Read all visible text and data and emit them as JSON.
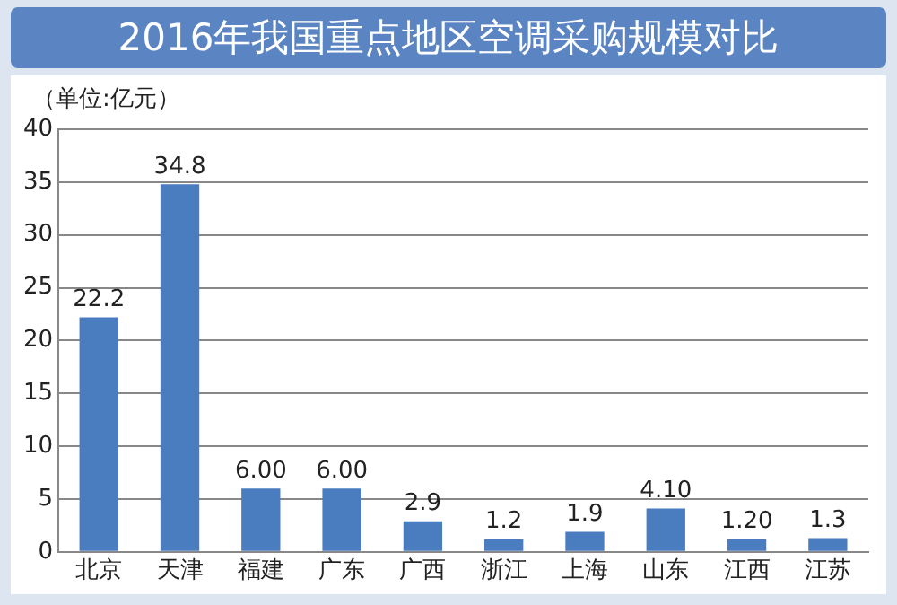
{
  "chart_data": {
    "type": "bar",
    "title": "2016年我国重点地区空调采购规模对比",
    "annotations": [
      "（单位:亿元）"
    ],
    "categories": [
      "北京",
      "天津",
      "福建",
      "广东",
      "广西",
      "浙江",
      "上海",
      "山东",
      "江西",
      "江苏"
    ],
    "values": [
      22.2,
      34.8,
      6,
      6,
      2.9,
      1.2,
      1.9,
      4.1,
      1.2,
      1.3
    ],
    "value_labels": [
      "22.2",
      "34.8",
      "6.00",
      "6.00",
      "2.9",
      "1.2",
      "1.9",
      "4.10",
      "1.20",
      "1.3"
    ],
    "color": "#4a7dc0",
    "ylim": [
      0,
      40
    ],
    "yticks": [
      0,
      5,
      10,
      15,
      20,
      25,
      30,
      35,
      40
    ],
    "grid": "y"
  }
}
